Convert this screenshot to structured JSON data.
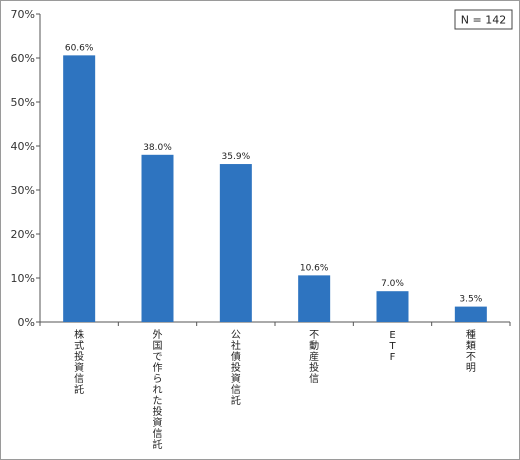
{
  "chart_data": {
    "type": "bar",
    "categories": [
      "株式投資信託",
      "外国で作られた投資信託",
      "公社債投資信託",
      "不動産投信",
      "ETF",
      "種類不明"
    ],
    "values": [
      60.6,
      38.0,
      35.9,
      10.6,
      7.0,
      3.5
    ],
    "value_labels": [
      "60.6%",
      "38.0%",
      "35.9%",
      "10.6%",
      "7.0%",
      "3.5%"
    ],
    "y_ticks": [
      "0%",
      "10%",
      "20%",
      "30%",
      "40%",
      "50%",
      "60%",
      "70%"
    ],
    "ylim": [
      0,
      70
    ],
    "bar_color": "#2e74c0",
    "grid": false,
    "legend": "none",
    "annotation": "N = 142"
  }
}
